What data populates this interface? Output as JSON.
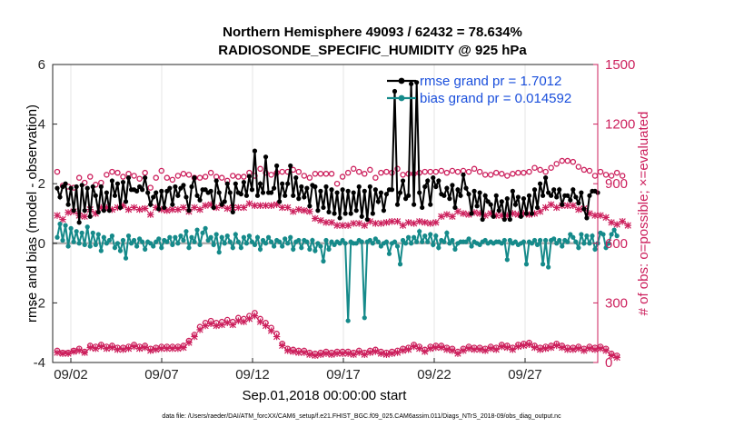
{
  "chart_data": {
    "type": "line",
    "title_line1": "Northern Hemisphere 49093 / 62432 = 78.634%",
    "title_line2": "RADIOSONDE_SPECIFIC_HUMIDITY @ 925 hPa",
    "xlabel": "Sep.01,2018 00:00:00 start",
    "ylabel_left": "rmse and bias (model - observation)",
    "ylabel_right": "# of obs: o=possible; ×=evaluated",
    "footnote": "data file: /Users/raeder/DAI/ATM_forcXX/CAM6_setup/f.e21.FHIST_BGC.f09_025.CAM6assim.011/Diags_NTrS_2018-09/obs_diag_output.nc",
    "xlim": [
      1,
      31
    ],
    "ylim_left": [
      -4,
      6
    ],
    "ylim_right": [
      0,
      1500
    ],
    "x_ticks": [
      2,
      7,
      12,
      17,
      22,
      27
    ],
    "x_tick_labels": [
      "09/02",
      "09/07",
      "09/12",
      "09/17",
      "09/22",
      "09/27"
    ],
    "y_left_ticks": [
      -4,
      -2,
      0,
      2,
      4,
      6
    ],
    "y_left_tick_labels": [
      "-4",
      "-2",
      "0",
      "2",
      "4",
      "6"
    ],
    "y_right_ticks": [
      0,
      300,
      600,
      900,
      1200,
      1500
    ],
    "y_right_tick_labels": [
      "0",
      "300",
      "600",
      "900",
      "1200",
      "1500"
    ],
    "legend": [
      {
        "name": "rmse grand pr = 1.7012",
        "color": "#000000"
      },
      {
        "name": "bias grand pr = 0.014592",
        "color": "#158a8a"
      }
    ],
    "colors": {
      "rmse": "#000000",
      "bias": "#158a8a",
      "obs": "#cc1f5c",
      "zero_line": "#b0b0b0",
      "legend_text": "#1a4fdc"
    },
    "series": {
      "rmse": [
        1.85,
        1.55,
        1.9,
        2.0,
        1.3,
        1.85,
        1.1,
        1.9,
        0.7,
        1.95,
        1.1,
        1.85,
        0.9,
        1.9,
        1.6,
        1.05,
        1.9,
        1.1,
        1.7,
        1.1,
        2.1,
        1.6,
        2.0,
        1.2,
        2.05,
        1.4,
        2.2,
        1.8,
        1.8,
        1.75,
        1.9,
        1.8,
        2.2,
        1.7,
        1.3,
        1.55,
        1.7,
        1.15,
        1.75,
        1.2,
        1.75,
        1.85,
        1.3,
        1.9,
        1.6,
        1.85,
        1.95,
        1.55,
        1.1,
        1.9,
        2.2,
        1.6,
        1.45,
        1.8,
        1.8,
        1.7,
        1.75,
        1.2,
        2.1,
        1.7,
        1.3,
        1.4,
        2.0,
        1.7,
        1.05,
        2.0,
        1.7,
        1.65,
        2.05,
        1.6,
        2.25,
        1.8,
        3.1,
        1.6,
        2.0,
        1.7,
        2.9,
        1.7,
        1.7,
        1.85,
        2.6,
        1.4,
        2.0,
        1.6,
        2.0,
        2.6,
        1.6,
        2.2,
        1.5,
        1.9,
        1.55,
        1.85,
        1.25,
        1.95,
        1.9,
        1.1,
        1.75,
        1.2,
        1.9,
        1.05,
        1.8,
        1.0,
        1.7,
        0.85,
        1.8,
        1.0,
        1.75,
        1.0,
        1.7,
        1.1,
        1.9,
        0.9,
        1.75,
        0.8,
        1.9,
        1.0,
        1.8,
        1.4,
        1.7,
        1.1,
        1.65,
        1.8,
        1.8,
        5.1,
        1.3,
        1.7,
        2.1,
        1.5,
        1.6,
        5.35,
        1.3,
        5.4,
        1.7,
        1.2,
        1.9,
        2.1,
        1.3,
        2.2,
        1.9,
        2.1,
        1.65,
        1.6,
        1.85,
        1.5,
        1.95,
        1.2,
        1.8,
        1.6,
        2.3,
        1.85,
        1.65,
        1.0,
        1.75,
        1.25,
        1.7,
        0.8,
        1.6,
        1.4,
        1.3,
        0.9,
        1.6,
        1.1,
        1.4,
        0.8,
        1.5,
        0.8,
        1.75,
        1.3,
        1.55,
        0.9,
        1.5,
        1.0,
        1.6,
        1.0,
        1.8,
        1.2,
        2.0,
        1.6,
        2.2,
        1.7,
        1.6,
        1.8,
        1.55,
        1.8,
        1.3,
        1.6,
        1.6,
        1.45,
        1.8,
        1.55,
        1.35,
        1.7,
        1.15,
        0.85,
        1.6,
        1.75,
        1.75,
        1.7
      ],
      "bias": [
        0.2,
        0.65,
        0.1,
        0.6,
        -0.1,
        0.5,
        0.05,
        0.4,
        0.0,
        0.35,
        -0.05,
        0.55,
        -0.1,
        0.35,
        -0.05,
        0.3,
        -0.25,
        0.2,
        0.0,
        0.1,
        0.25,
        -0.15,
        0.0,
        -0.25,
        0.1,
        -0.5,
        0.25,
        0.0,
        0.1,
        -0.1,
        0.15,
        0.05,
        -0.2,
        0.05,
        0.0,
        -0.1,
        0.05,
        0.15,
        -0.15,
        0.1,
        0.05,
        0.2,
        -0.05,
        0.2,
        0.0,
        0.25,
        0.1,
        0.4,
        -0.15,
        0.2,
        0.05,
        0.45,
        -0.05,
        0.35,
        0.5,
        0.1,
        0.2,
        -0.05,
        0.3,
        -0.3,
        0.2,
        0.0,
        0.25,
        0.05,
        -0.15,
        0.3,
        0.05,
        -0.15,
        0.2,
        0.0,
        0.25,
        0.05,
        -0.05,
        0.2,
        -0.2,
        0.1,
        0.0,
        0.2,
        0.05,
        -0.1,
        0.1,
        0.05,
        -0.1,
        0.15,
        0.0,
        0.2,
        -0.2,
        0.05,
        0.1,
        -0.15,
        0.1,
        0.05,
        -0.2,
        0.1,
        -0.25,
        0.0,
        -0.1,
        -0.6,
        0.1,
        -0.2,
        0.05,
        -0.05,
        0.05,
        0.0,
        0.1,
        0.0,
        -2.6,
        0.05,
        0.0,
        0.0,
        0.1,
        0.05,
        -2.5,
        0.05,
        0.1,
        0.0,
        0.15,
        0.05,
        -0.1,
        0.0,
        0.05,
        -0.35,
        0.0,
        0.05,
        -0.1,
        -0.7,
        0.1,
        0.0,
        0.2,
        0.0,
        0.2,
        0.05,
        0.4,
        0.05,
        0.25,
        0.05,
        0.3,
        -0.05,
        0.25,
        -0.15,
        0.1,
        0.05,
        0.35,
        0.0,
        0.1,
        -0.2,
        0.0,
        0.05,
        0.05,
        0.05,
        0.15,
        -0.1,
        0.05,
        0.0,
        -0.05,
        0.05,
        0.1,
        0.0,
        0.05,
        0.0,
        0.05,
        0.05,
        0.0,
        0.1,
        -0.55,
        0.1,
        0.0,
        0.05,
        -0.05,
        0.0,
        0.05,
        -0.7,
        0.05,
        0.0,
        0.1,
        -0.05,
        0.1,
        -0.7,
        0.1,
        -0.8,
        0.1,
        0.15,
        0.0,
        0.1,
        -0.1,
        0.1,
        0.05,
        0.3,
        0.2,
        0.05,
        -0.15,
        0.3,
        0.0,
        0.25,
        0.0,
        0.25,
        -0.2,
        0.0,
        0.35,
        0.3,
        -0.15,
        0.0,
        0.3,
        0.45,
        0.25
      ],
      "possible": [
        960,
        870,
        890,
        900,
        885,
        890,
        880,
        905,
        930,
        895,
        905,
        940,
        935,
        925,
        895,
        910,
        905,
        920,
        945,
        960,
        960,
        960,
        955,
        955,
        935,
        925,
        950,
        950,
        940,
        910,
        925,
        955,
        955,
        960,
        880,
        905,
        930,
        945,
        965,
        945,
        930,
        935,
        920,
        935,
        940,
        925,
        950,
        970,
        945,
        950,
        930,
        930,
        930,
        920,
        935,
        945,
        955,
        940,
        935,
        945,
        930,
        935,
        915,
        935,
        940,
        945,
        935,
        945,
        935,
        950,
        955,
        955,
        940,
        950,
        975,
        950,
        955,
        950,
        945,
        960,
        955,
        950,
        960,
        955,
        960,
        960,
        970,
        960,
        960,
        960,
        940,
        945,
        930,
        945,
        950,
        955,
        950,
        935,
        950,
        955,
        950,
        930,
        900,
        945,
        935,
        950,
        955,
        950,
        975,
        955,
        960,
        965,
        950,
        945,
        970,
        960,
        930,
        960,
        955,
        945,
        960,
        950,
        955,
        960,
        975,
        960,
        945,
        975,
        950,
        970,
        950,
        965,
        955,
        960,
        960,
        965,
        960,
        940,
        960,
        935,
        965,
        945,
        955,
        955,
        965,
        965,
        960,
        940,
        965,
        970,
        960,
        955,
        975,
        960,
        960,
        935,
        945,
        955,
        945,
        945,
        955,
        950,
        950,
        940,
        940,
        960,
        950,
        940,
        955,
        945,
        955,
        960,
        960,
        950,
        980,
        945,
        970,
        990,
        960,
        985,
        980,
        990,
        1000,
        1010,
        1015,
        1005,
        1015,
        1010,
        1010,
        990,
        985,
        975,
        970,
        980,
        965,
        960,
        940,
        950,
        960,
        940,
        945,
        935,
        940,
        965,
        955,
        950,
        940,
        950
      ],
      "evaluated": [
        740,
        745,
        720,
        755,
        755,
        755,
        760,
        740,
        740,
        730,
        735,
        760,
        770,
        765,
        750,
        760,
        780,
        780,
        780,
        780,
        770,
        760,
        780,
        790,
        790,
        765,
        770,
        780,
        780,
        755,
        770,
        775,
        775,
        740,
        745,
        760,
        780,
        780,
        770,
        765,
        765,
        745,
        770,
        750,
        770,
        770,
        780,
        785,
        760,
        770,
        780,
        780,
        770,
        765,
        790,
        790,
        795,
        770,
        780,
        780,
        790,
        790,
        775,
        780,
        780,
        770,
        780,
        780,
        780,
        780,
        800,
        780,
        790,
        790,
        790,
        780,
        790,
        795,
        790,
        790,
        795,
        790,
        780,
        780,
        780,
        770,
        760,
        775,
        770,
        760,
        765,
        750,
        760,
        735,
        725,
        715,
        715,
        705,
        705,
        700,
        705,
        695,
        690,
        690,
        690,
        700,
        690,
        700,
        700,
        695,
        700,
        695,
        690,
        700,
        710,
        710,
        700,
        690,
        700,
        690,
        705,
        700,
        710,
        695,
        710,
        690,
        690,
        690,
        705,
        700,
        700,
        700,
        710,
        700,
        705,
        700,
        700,
        705,
        705,
        720,
        735,
        740,
        745,
        745,
        735,
        740,
        760,
        745,
        750,
        760,
        745,
        755,
        755,
        745,
        750,
        755,
        740,
        745,
        750,
        740,
        740,
        740,
        740,
        745,
        740,
        745,
        750,
        755,
        745,
        745,
        750,
        745,
        745,
        745,
        750,
        750,
        760,
        775,
        780,
        790,
        795,
        790,
        780,
        780,
        790,
        785,
        790,
        780,
        790,
        780,
        770,
        760,
        775,
        760,
        750,
        760,
        740,
        735,
        740,
        735,
        730,
        710,
        705,
        705,
        695,
        700,
        710,
        705,
        690,
        690
      ],
      "possible_low": [
        60,
        60,
        50,
        60,
        50,
        50,
        60,
        55,
        70,
        60,
        55,
        65,
        85,
        90,
        80,
        85,
        90,
        85,
        80,
        85,
        85,
        70,
        75,
        90,
        75,
        85,
        80,
        70,
        90,
        85,
        80,
        90,
        85,
        90,
        70,
        65,
        75,
        75,
        80,
        75,
        80,
        75,
        80,
        75,
        80,
        90,
        85,
        95,
        110,
        120,
        140,
        160,
        180,
        200,
        200,
        195,
        210,
        210,
        200,
        200,
        205,
        210,
        215,
        190,
        205,
        220,
        225,
        210,
        220,
        225,
        235,
        250,
        250,
        235,
        220,
        215,
        200,
        185,
        175,
        165,
        145,
        120,
        95,
        80,
        70,
        60,
        65,
        55,
        60,
        50,
        60,
        55,
        50,
        55,
        45,
        55,
        50,
        50,
        55,
        45,
        50,
        55,
        55,
        50,
        55,
        60,
        55,
        55,
        50,
        55,
        60,
        60,
        50,
        55,
        60,
        55,
        65,
        60,
        55,
        60,
        50,
        55,
        55,
        50,
        60,
        60,
        70,
        65,
        75,
        75,
        90,
        90,
        80,
        70,
        65,
        85,
        80,
        75,
        85,
        90,
        85,
        90,
        75,
        70,
        70,
        60,
        55,
        65,
        70,
        70,
        80,
        75,
        75,
        80,
        75,
        85,
        70,
        70,
        80,
        85,
        75,
        80,
        90,
        90,
        85,
        80,
        75,
        90,
        90,
        90,
        95,
        100,
        100,
        90,
        85,
        85,
        75,
        80,
        80,
        80,
        85,
        90,
        95,
        80,
        85,
        80,
        75,
        70,
        75,
        85,
        80,
        75,
        70,
        80,
        80,
        75,
        75,
        70,
        80,
        70,
        70,
        50,
        45,
        40,
        35,
        0
      ],
      "evaluated_low": [
        50,
        50,
        45,
        55,
        45,
        45,
        55,
        50,
        60,
        55,
        50,
        60,
        75,
        80,
        70,
        75,
        80,
        75,
        70,
        75,
        75,
        60,
        65,
        80,
        65,
        75,
        70,
        60,
        80,
        75,
        70,
        80,
        75,
        80,
        60,
        55,
        65,
        65,
        70,
        65,
        70,
        65,
        70,
        65,
        70,
        80,
        75,
        85,
        100,
        110,
        130,
        150,
        165,
        185,
        185,
        180,
        195,
        195,
        185,
        185,
        190,
        195,
        200,
        175,
        190,
        205,
        210,
        195,
        205,
        210,
        220,
        235,
        235,
        220,
        205,
        200,
        185,
        170,
        160,
        150,
        130,
        110,
        85,
        70,
        60,
        50,
        55,
        45,
        50,
        40,
        50,
        45,
        40,
        45,
        35,
        45,
        40,
        40,
        45,
        35,
        40,
        45,
        45,
        40,
        45,
        50,
        45,
        45,
        40,
        45,
        50,
        50,
        40,
        45,
        50,
        45,
        55,
        50,
        45,
        50,
        40,
        45,
        45,
        40,
        50,
        50,
        60,
        55,
        65,
        65,
        80,
        80,
        70,
        60,
        55,
        75,
        70,
        65,
        75,
        80,
        75,
        80,
        65,
        60,
        60,
        50,
        45,
        55,
        60,
        60,
        70,
        65,
        65,
        70,
        65,
        75,
        60,
        60,
        70,
        75,
        65,
        70,
        80,
        80,
        75,
        70,
        65,
        80,
        80,
        80,
        85,
        90,
        90,
        80,
        75,
        75,
        65,
        70,
        70,
        70,
        75,
        80,
        85,
        70,
        75,
        70,
        65,
        60,
        65,
        75,
        70,
        65,
        60,
        70,
        70,
        65,
        65,
        60,
        70,
        60,
        60,
        40,
        35,
        30,
        25,
        0
      ]
    }
  }
}
